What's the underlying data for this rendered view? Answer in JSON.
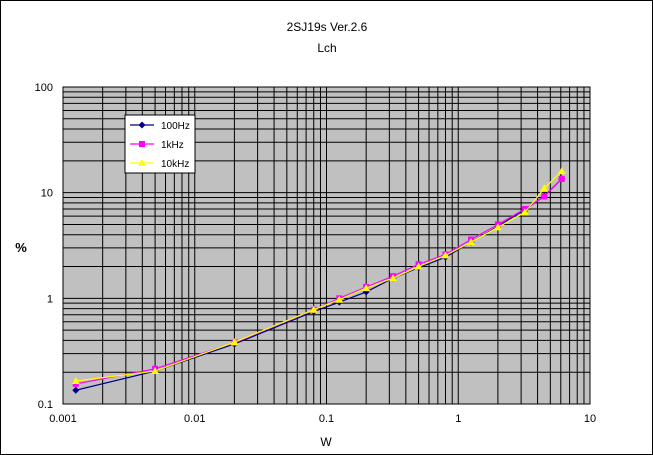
{
  "chart_data": {
    "type": "line",
    "title": "2SJ19s  Ver.2.6",
    "subtitle": "Lch",
    "xlabel": "W",
    "ylabel": "%",
    "x_scale": "log",
    "y_scale": "log",
    "xlim": [
      0.001,
      10
    ],
    "ylim": [
      0.1,
      100
    ],
    "x_ticks": [
      "0.001",
      "0.01",
      "0.1",
      "1",
      "10"
    ],
    "y_ticks": [
      "0.1",
      "1",
      "10",
      "100"
    ],
    "grid": true,
    "plot_background": "#c0c0c0",
    "legend_placement": "top-left",
    "series": [
      {
        "name": "100Hz",
        "color": "#000080",
        "marker": "diamond",
        "x": [
          0.00125,
          0.005,
          0.02,
          0.08,
          0.125,
          0.2,
          0.32,
          0.5,
          0.8,
          1.25,
          2,
          3.2,
          4.5,
          6.1
        ],
        "y": [
          0.135,
          0.205,
          0.37,
          0.75,
          0.92,
          1.15,
          1.55,
          1.95,
          2.45,
          3.4,
          4.8,
          6.9,
          9.3,
          13.5
        ]
      },
      {
        "name": "1kHz",
        "color": "#ff00ff",
        "marker": "square",
        "x": [
          0.00125,
          0.005,
          0.02,
          0.08,
          0.125,
          0.2,
          0.32,
          0.5,
          0.8,
          1.25,
          2,
          3.2,
          4.5,
          6.1
        ],
        "y": [
          0.155,
          0.215,
          0.38,
          0.78,
          1.0,
          1.28,
          1.62,
          2.1,
          2.6,
          3.6,
          5.0,
          7.0,
          9.2,
          13.5
        ]
      },
      {
        "name": "10kHz",
        "color": "#ffff00",
        "marker": "triangle",
        "x": [
          0.00125,
          0.005,
          0.02,
          0.08,
          0.125,
          0.2,
          0.32,
          0.5,
          0.8,
          1.25,
          2,
          3.2,
          4.5,
          6.1
        ],
        "y": [
          0.165,
          0.205,
          0.385,
          0.78,
          0.97,
          1.25,
          1.55,
          2.0,
          2.55,
          3.4,
          4.7,
          6.5,
          11.0,
          16.0
        ]
      }
    ]
  }
}
